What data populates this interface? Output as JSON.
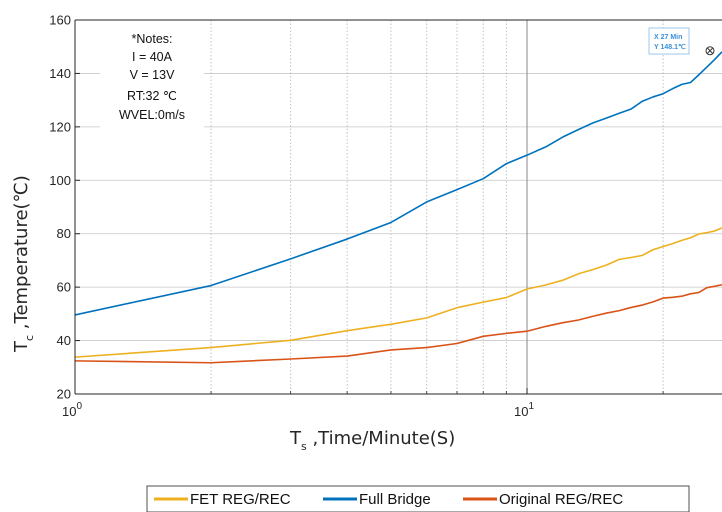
{
  "chart_data": {
    "type": "line",
    "xscale": "log",
    "yscale": "linear",
    "xlim": [
      1,
      27
    ],
    "ylim": [
      20,
      160
    ],
    "grid": true,
    "xtick_labels": [
      {
        "base": "10",
        "exp": "0",
        "value": 1
      },
      {
        "base": "10",
        "exp": "1",
        "value": 10
      }
    ],
    "yticks": [
      "20",
      "40",
      "60",
      "80",
      "100",
      "120",
      "140",
      "160"
    ],
    "xlabel": {
      "main": "T",
      "sub": "s",
      "rest": " ,Time/Minute(S)"
    },
    "ylabel": {
      "main": "T",
      "sub": "c",
      "rest": " ,Temperature(℃)"
    },
    "notes": [
      "*Notes:",
      "I  = 40A",
      "V  = 13V",
      "RT:32 ℃",
      "WVEL:0m/s"
    ],
    "datatip": {
      "x_label": "X 27 Min",
      "y_label": "Y 148.1℃",
      "x": 27,
      "y": 148.1
    },
    "legend_position": "bottom-right",
    "series": [
      {
        "name": "FET REG/REC",
        "color": "#EDB120",
        "x": [
          1,
          2,
          3,
          4,
          5,
          6,
          7,
          8,
          9,
          10,
          11,
          12,
          13,
          14,
          15,
          16,
          17,
          18,
          19,
          20,
          21,
          22,
          23,
          24,
          25,
          26,
          27
        ],
        "y": [
          33.8,
          37.4,
          40.1,
          43.7,
          46.1,
          48.5,
          52.3,
          54.4,
          56.1,
          59.3,
          60.8,
          62.6,
          65.0,
          66.6,
          68.3,
          70.4,
          71.1,
          71.9,
          74.0,
          75.2,
          76.3,
          77.5,
          78.5,
          79.9,
          80.4,
          81.0,
          82.2
        ]
      },
      {
        "name": "Full Bridge",
        "color": "#0072BD",
        "x": [
          1,
          2,
          3,
          4,
          5,
          6,
          7,
          8,
          9,
          10,
          11,
          12,
          13,
          14,
          15,
          16,
          17,
          18,
          19,
          20,
          21,
          22,
          23,
          24,
          25,
          26,
          27
        ],
        "y": [
          49.6,
          60.6,
          70.6,
          78.0,
          84.2,
          91.9,
          96.5,
          100.6,
          106.2,
          109.4,
          112.5,
          116.2,
          119.0,
          121.5,
          123.3,
          125.1,
          126.7,
          129.6,
          131.2,
          132.4,
          134.3,
          135.9,
          136.6,
          139.5,
          142.4,
          145.2,
          148.1
        ]
      },
      {
        "name": "Original REG/REC",
        "color": "#D95319",
        "x": [
          1,
          2,
          3,
          4,
          5,
          6,
          7,
          8,
          9,
          10,
          11,
          12,
          13,
          14,
          15,
          16,
          17,
          18,
          19,
          20,
          21,
          22,
          23,
          24,
          25,
          26,
          27
        ],
        "y": [
          32.4,
          31.7,
          33.1,
          34.2,
          36.5,
          37.4,
          38.9,
          41.6,
          42.7,
          43.5,
          45.3,
          46.7,
          47.7,
          49.1,
          50.3,
          51.2,
          52.4,
          53.3,
          54.5,
          55.9,
          56.2,
          56.6,
          57.5,
          58.0,
          59.8,
          60.3,
          60.9
        ]
      }
    ]
  }
}
